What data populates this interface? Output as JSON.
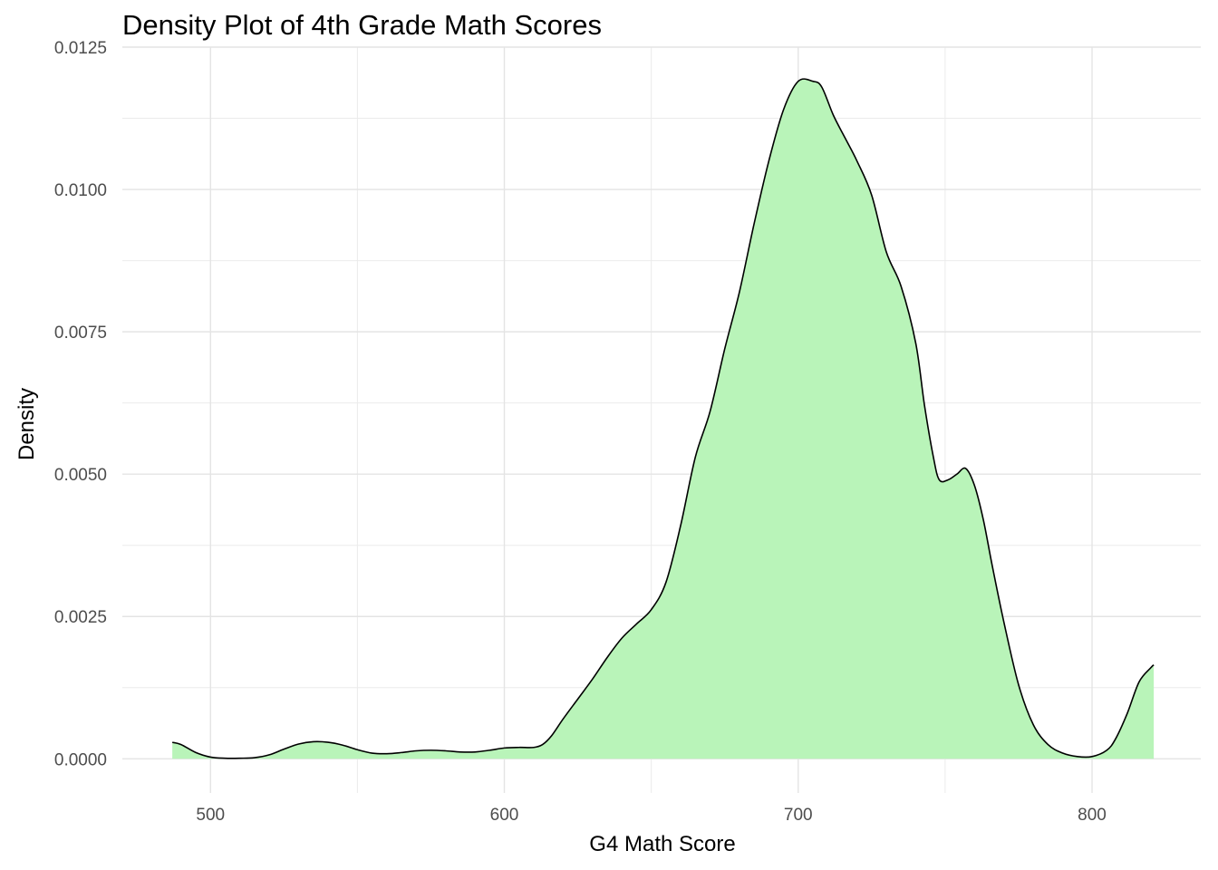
{
  "chart_data": {
    "type": "area",
    "title": "Density Plot of 4th Grade Math Scores",
    "xlabel": "G4 Math Score",
    "ylabel": "Density",
    "xlim": [
      470,
      837
    ],
    "ylim": [
      -0.0006,
      0.0125
    ],
    "x_ticks": [
      500,
      600,
      700,
      800
    ],
    "x_tick_labels": [
      "500",
      "600",
      "700",
      "800"
    ],
    "y_ticks": [
      0,
      0.0025,
      0.005,
      0.0075,
      0.01,
      0.0125
    ],
    "y_tick_labels": [
      "0.0000",
      "0.0025",
      "0.0050",
      "0.0075",
      "0.0100",
      "0.0125"
    ],
    "grid": true,
    "fill_color": "#b9f4b9",
    "line_color": "#000000",
    "series": [
      {
        "x": [
          487,
          490,
          495,
          500,
          505,
          510,
          515,
          520,
          525,
          530,
          535,
          540,
          545,
          550,
          555,
          560,
          565,
          570,
          575,
          580,
          585,
          590,
          595,
          600,
          605,
          610,
          613,
          616,
          620,
          625,
          630,
          635,
          640,
          645,
          650,
          655,
          660,
          665,
          670,
          675,
          680,
          685,
          690,
          695,
          700,
          705,
          708,
          712,
          716,
          720,
          725,
          730,
          735,
          740,
          743,
          746,
          748,
          751,
          754,
          757,
          760,
          763,
          766,
          770,
          775,
          780,
          785,
          790,
          795,
          800,
          805,
          808,
          812,
          816,
          820,
          821
        ],
        "y": [
          0.00029,
          0.00025,
          0.00011,
          3e-05,
          1e-05,
          1e-05,
          2e-05,
          7e-05,
          0.00017,
          0.00026,
          0.0003,
          0.00029,
          0.00024,
          0.00016,
          0.0001,
          9e-05,
          0.00011,
          0.00014,
          0.00015,
          0.00014,
          0.00012,
          0.00012,
          0.00015,
          0.00019,
          0.0002,
          0.0002,
          0.00025,
          0.0004,
          0.0007,
          0.00105,
          0.0014,
          0.00178,
          0.00212,
          0.00237,
          0.00262,
          0.0031,
          0.0041,
          0.0053,
          0.0061,
          0.0072,
          0.0082,
          0.0094,
          0.0105,
          0.0114,
          0.0119,
          0.0119,
          0.0118,
          0.0113,
          0.0109,
          0.0105,
          0.0099,
          0.0089,
          0.0083,
          0.0073,
          0.0062,
          0.0053,
          0.0049,
          0.0049,
          0.005,
          0.0051,
          0.0048,
          0.0042,
          0.0034,
          0.0024,
          0.0013,
          0.0006,
          0.00025,
          0.0001,
          4e-05,
          4e-05,
          0.00015,
          0.00035,
          0.0008,
          0.00135,
          0.0016,
          0.00165
        ]
      }
    ]
  }
}
